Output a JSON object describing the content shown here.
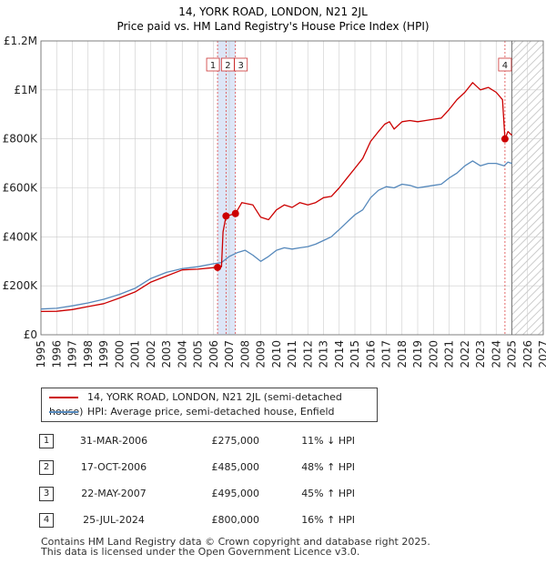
{
  "chart_data": {
    "type": "line",
    "title": "14, YORK ROAD, LONDON, N21 2JL",
    "subtitle": "Price paid vs. HM Land Registry's House Price Index (HPI)",
    "ylim": [
      0,
      1200000
    ],
    "xlim": [
      1995,
      2027
    ],
    "y_ticks": [
      0,
      200000,
      400000,
      600000,
      800000,
      1000000,
      1200000
    ],
    "y_tick_labels": [
      "£0",
      "£200K",
      "£400K",
      "£600K",
      "£800K",
      "£1M",
      "£1.2M"
    ],
    "x_ticks": [
      1995,
      1996,
      1997,
      1998,
      1999,
      2000,
      2001,
      2002,
      2003,
      2004,
      2005,
      2006,
      2007,
      2008,
      2009,
      2010,
      2011,
      2012,
      2013,
      2014,
      2015,
      2016,
      2017,
      2018,
      2019,
      2020,
      2021,
      2022,
      2023,
      2024,
      2025,
      2026,
      2027
    ],
    "grid": true,
    "shaded_span": [
      2006.25,
      2007.39
    ],
    "forecast_from": 2025.0,
    "series": [
      {
        "name": "14, YORK ROAD, LONDON, N21 2JL (semi-detached house)",
        "color": "#cc0000",
        "points": [
          [
            1995.0,
            95000
          ],
          [
            1996.0,
            96000
          ],
          [
            1997.0,
            103000
          ],
          [
            1998.0,
            115000
          ],
          [
            1999.0,
            127000
          ],
          [
            2000.0,
            150000
          ],
          [
            2001.0,
            175000
          ],
          [
            2002.0,
            215000
          ],
          [
            2003.0,
            240000
          ],
          [
            2004.0,
            265000
          ],
          [
            2005.0,
            268000
          ],
          [
            2006.0,
            274000
          ],
          [
            2006.25,
            275000
          ],
          [
            2006.5,
            278000
          ],
          [
            2006.6,
            420000
          ],
          [
            2006.79,
            485000
          ],
          [
            2007.0,
            488000
          ],
          [
            2007.39,
            495000
          ],
          [
            2007.8,
            540000
          ],
          [
            2008.5,
            530000
          ],
          [
            2009.0,
            480000
          ],
          [
            2009.5,
            470000
          ],
          [
            2010.0,
            510000
          ],
          [
            2010.5,
            530000
          ],
          [
            2011.0,
            520000
          ],
          [
            2011.5,
            540000
          ],
          [
            2012.0,
            530000
          ],
          [
            2012.5,
            540000
          ],
          [
            2013.0,
            560000
          ],
          [
            2013.5,
            565000
          ],
          [
            2014.0,
            600000
          ],
          [
            2014.5,
            640000
          ],
          [
            2015.0,
            680000
          ],
          [
            2015.5,
            720000
          ],
          [
            2016.0,
            790000
          ],
          [
            2016.5,
            830000
          ],
          [
            2016.9,
            860000
          ],
          [
            2017.2,
            870000
          ],
          [
            2017.5,
            840000
          ],
          [
            2018.0,
            870000
          ],
          [
            2018.5,
            875000
          ],
          [
            2019.0,
            870000
          ],
          [
            2019.5,
            875000
          ],
          [
            2020.0,
            880000
          ],
          [
            2020.5,
            885000
          ],
          [
            2021.0,
            920000
          ],
          [
            2021.5,
            960000
          ],
          [
            2022.0,
            990000
          ],
          [
            2022.5,
            1030000
          ],
          [
            2023.0,
            1000000
          ],
          [
            2023.5,
            1010000
          ],
          [
            2024.0,
            990000
          ],
          [
            2024.4,
            960000
          ],
          [
            2024.56,
            800000
          ],
          [
            2024.75,
            830000
          ],
          [
            2025.0,
            815000
          ]
        ]
      },
      {
        "name": "HPI: Average price, semi-detached house, Enfield",
        "color": "#5588bb",
        "points": [
          [
            1995.0,
            105000
          ],
          [
            1996.0,
            108000
          ],
          [
            1997.0,
            118000
          ],
          [
            1998.0,
            130000
          ],
          [
            1999.0,
            145000
          ],
          [
            2000.0,
            165000
          ],
          [
            2001.0,
            190000
          ],
          [
            2002.0,
            230000
          ],
          [
            2003.0,
            255000
          ],
          [
            2004.0,
            270000
          ],
          [
            2005.0,
            278000
          ],
          [
            2006.0,
            290000
          ],
          [
            2006.5,
            295000
          ],
          [
            2007.0,
            320000
          ],
          [
            2007.5,
            335000
          ],
          [
            2008.0,
            345000
          ],
          [
            2008.5,
            325000
          ],
          [
            2009.0,
            300000
          ],
          [
            2009.5,
            320000
          ],
          [
            2010.0,
            345000
          ],
          [
            2010.5,
            355000
          ],
          [
            2011.0,
            350000
          ],
          [
            2011.5,
            355000
          ],
          [
            2012.0,
            360000
          ],
          [
            2012.5,
            370000
          ],
          [
            2013.0,
            385000
          ],
          [
            2013.5,
            400000
          ],
          [
            2014.0,
            430000
          ],
          [
            2014.5,
            460000
          ],
          [
            2015.0,
            490000
          ],
          [
            2015.5,
            510000
          ],
          [
            2016.0,
            560000
          ],
          [
            2016.5,
            590000
          ],
          [
            2017.0,
            605000
          ],
          [
            2017.5,
            600000
          ],
          [
            2018.0,
            615000
          ],
          [
            2018.5,
            610000
          ],
          [
            2019.0,
            600000
          ],
          [
            2019.5,
            605000
          ],
          [
            2020.0,
            610000
          ],
          [
            2020.5,
            615000
          ],
          [
            2021.0,
            640000
          ],
          [
            2021.5,
            660000
          ],
          [
            2022.0,
            690000
          ],
          [
            2022.5,
            710000
          ],
          [
            2023.0,
            690000
          ],
          [
            2023.5,
            700000
          ],
          [
            2024.0,
            700000
          ],
          [
            2024.5,
            690000
          ],
          [
            2024.75,
            705000
          ],
          [
            2025.0,
            700000
          ]
        ]
      }
    ],
    "transactions": [
      {
        "id": "1",
        "x": 2006.25,
        "y": 275000
      },
      {
        "id": "2",
        "x": 2006.79,
        "y": 485000
      },
      {
        "id": "3",
        "x": 2007.39,
        "y": 495000
      },
      {
        "id": "4",
        "x": 2024.56,
        "y": 800000
      }
    ],
    "colors": {
      "red": "#cc0000",
      "blue": "#5588bb",
      "shade": "#dde6f7",
      "grid": "#cccccc"
    }
  },
  "legend": {
    "entries": [
      "14, YORK ROAD, LONDON, N21 2JL (semi-detached house)",
      "HPI: Average price, semi-detached house, Enfield"
    ]
  },
  "table": {
    "rows": [
      {
        "num": "1",
        "date": "31-MAR-2006",
        "price": "£275,000",
        "hpi": "11% ↓ HPI"
      },
      {
        "num": "2",
        "date": "17-OCT-2006",
        "price": "£485,000",
        "hpi": "48% ↑ HPI"
      },
      {
        "num": "3",
        "date": "22-MAY-2007",
        "price": "£495,000",
        "hpi": "45% ↑ HPI"
      },
      {
        "num": "4",
        "date": "25-JUL-2024",
        "price": "£800,000",
        "hpi": "16% ↑ HPI"
      }
    ]
  },
  "footer": {
    "line1": "Contains HM Land Registry data © Crown copyright and database right 2025.",
    "line2": "This data is licensed under the Open Government Licence v3.0."
  }
}
